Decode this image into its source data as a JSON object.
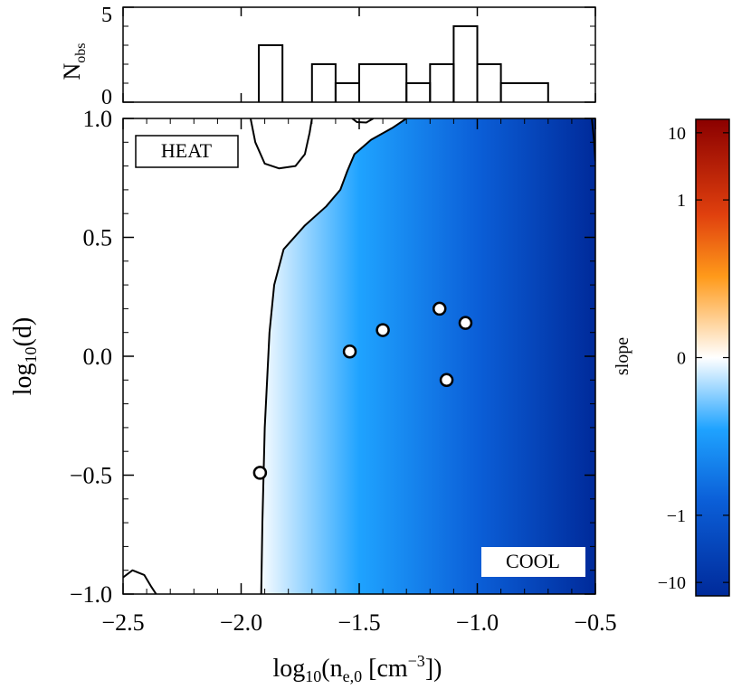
{
  "chart_data": [
    {
      "type": "histogram",
      "panel": "top",
      "ylabel_main": "N",
      "ylabel_sub": "obs",
      "xlim": [
        -2.5,
        -0.5
      ],
      "ylim": [
        0,
        5
      ],
      "yticks": [
        "0",
        "5"
      ],
      "bins": [
        {
          "x0": -1.925,
          "x1": -1.825,
          "count": 3
        },
        {
          "x0": -1.825,
          "x1": -1.7,
          "count": 0
        },
        {
          "x0": -1.7,
          "x1": -1.6,
          "count": 2
        },
        {
          "x0": -1.6,
          "x1": -1.5,
          "count": 1
        },
        {
          "x0": -1.5,
          "x1": -1.3,
          "count": 2
        },
        {
          "x0": -1.3,
          "x1": -1.2,
          "count": 1
        },
        {
          "x0": -1.2,
          "x1": -1.1,
          "count": 2
        },
        {
          "x0": -1.1,
          "x1": -1.0,
          "count": 4
        },
        {
          "x0": -1.0,
          "x1": -0.9,
          "count": 2
        },
        {
          "x0": -0.9,
          "x1": -0.7,
          "count": 1
        }
      ]
    },
    {
      "type": "heatmap",
      "panel": "main",
      "xlabel_pre": "log",
      "xlabel_sub": "10",
      "xlabel_paren": "(n",
      "xlabel_var_sub": "e,0",
      "xlabel_units": " [cm",
      "xlabel_exp": "−3",
      "xlabel_close": "])",
      "ylabel_pre": "log",
      "ylabel_sub": "10",
      "ylabel_post": "(d)",
      "xlim": [
        -2.5,
        -0.5
      ],
      "ylim": [
        -1.0,
        1.0
      ],
      "xticks": [
        -2.5,
        -2.0,
        -1.5,
        -1.0,
        -0.5
      ],
      "xtick_labels": [
        "−2.5",
        "−2.0",
        "−1.5",
        "−1.0",
        "−0.5"
      ],
      "yticks": [
        -1.0,
        -0.5,
        0.0,
        0.5,
        1.0
      ],
      "ytick_labels": [
        "−1.0",
        "−0.5",
        "0.0",
        "0.5",
        "1.0"
      ],
      "region_labels": {
        "heat": "HEAT",
        "cool": "COOL"
      },
      "points": [
        {
          "x": -1.92,
          "y": -0.49
        },
        {
          "x": -1.54,
          "y": 0.02
        },
        {
          "x": -1.4,
          "y": 0.11
        },
        {
          "x": -1.16,
          "y": 0.2
        },
        {
          "x": -1.13,
          "y": -0.1
        },
        {
          "x": -1.05,
          "y": 0.14
        }
      ],
      "zero_contour": [
        [
          -1.915,
          -1.0
        ],
        [
          -1.91,
          -0.7
        ],
        [
          -1.9,
          -0.3
        ],
        [
          -1.88,
          0.1
        ],
        [
          -1.86,
          0.3
        ],
        [
          -1.82,
          0.45
        ],
        [
          -1.73,
          0.55
        ],
        [
          -1.64,
          0.63
        ],
        [
          -1.58,
          0.7
        ],
        [
          -1.55,
          0.78
        ],
        [
          -1.52,
          0.85
        ],
        [
          -1.45,
          0.91
        ],
        [
          -1.36,
          0.96
        ],
        [
          -1.3,
          1.0
        ]
      ],
      "heat_contour_top": [
        [
          -1.96,
          1.0
        ],
        [
          -1.94,
          0.9
        ],
        [
          -1.9,
          0.81
        ],
        [
          -1.84,
          0.79
        ],
        [
          -1.77,
          0.8
        ],
        [
          -1.73,
          0.85
        ],
        [
          -1.71,
          0.94
        ],
        [
          -1.7,
          1.0
        ]
      ],
      "heat_contour_corner": [
        [
          -2.5,
          -0.93
        ],
        [
          -2.46,
          -0.9
        ],
        [
          -2.41,
          -0.92
        ],
        [
          -2.38,
          -0.97
        ],
        [
          -2.36,
          -1.0
        ]
      ],
      "heat_contour_small": [
        [
          -1.53,
          1.0
        ],
        [
          -1.51,
          0.985
        ],
        [
          -1.47,
          0.983
        ],
        [
          -1.44,
          1.0
        ]
      ],
      "heat_contour_edge": [
        [
          -0.515,
          1.0
        ],
        [
          -0.505,
          0.9
        ],
        [
          -0.5,
          0.82
        ]
      ]
    },
    {
      "type": "colorbar",
      "label": "slope",
      "tick_labels": [
        "10",
        "1",
        "0",
        "−1",
        "−10"
      ],
      "tick_values": [
        10,
        1,
        0,
        -1,
        -10
      ],
      "colors": {
        "top": "#8b0000",
        "upper": "#e0400e",
        "mid_upper": "#ff9a1a",
        "zero": "#ffffff",
        "mid_lower": "#1fa3ff",
        "lower": "#0b5fd8",
        "bottom": "#002a9a"
      }
    }
  ]
}
